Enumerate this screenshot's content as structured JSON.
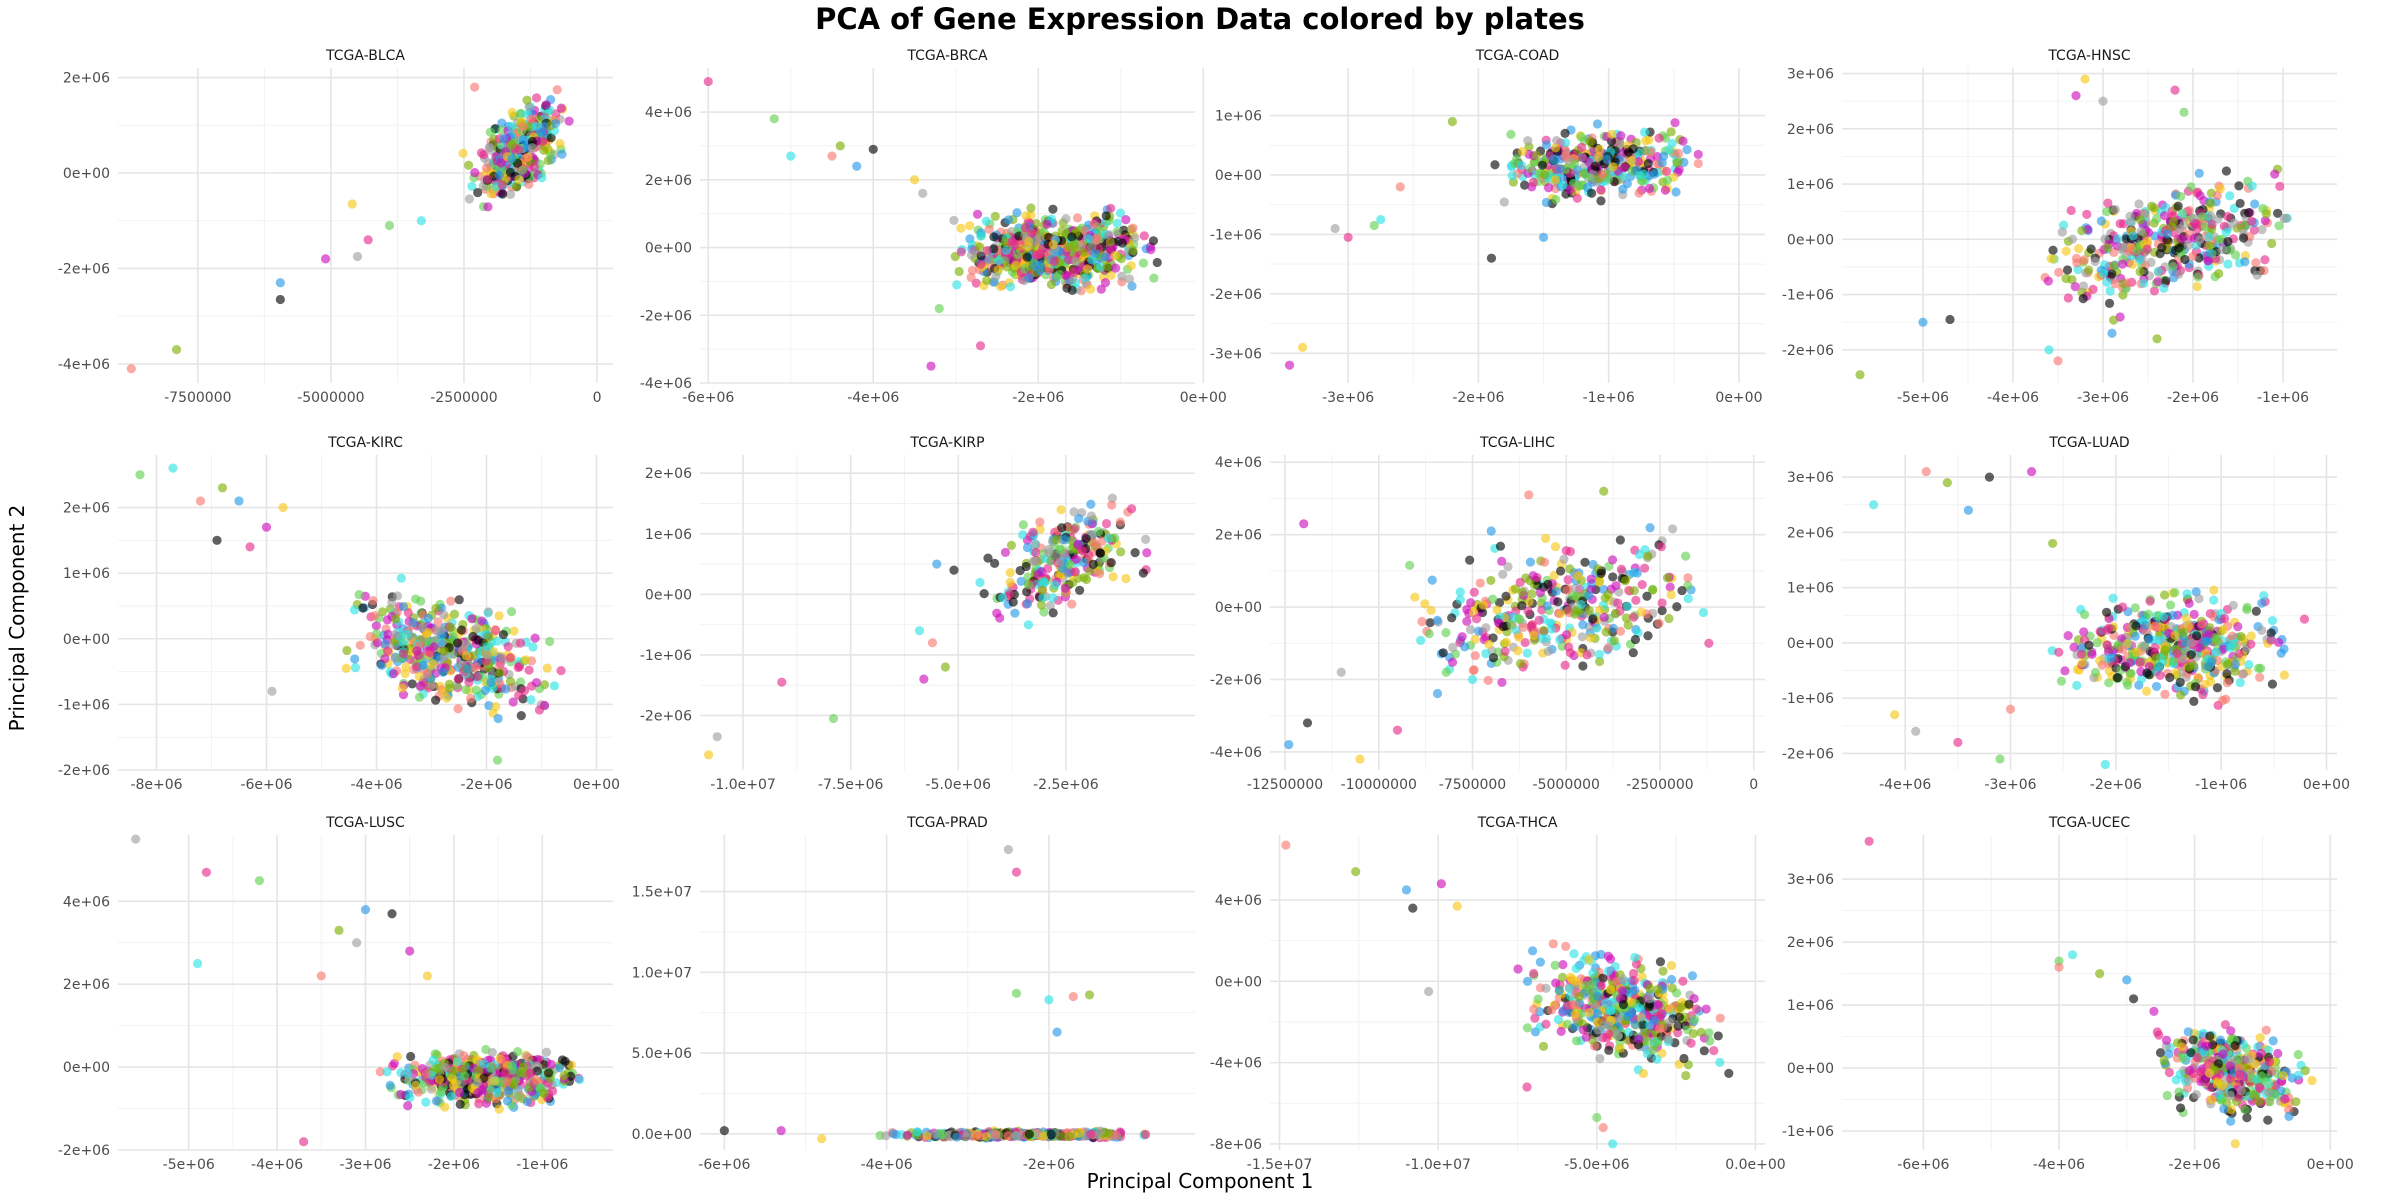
{
  "title": "PCA of Gene Expression Data colored by plates",
  "xlabel": "Principal Component 1",
  "ylabel": "Principal Component 2",
  "palette": [
    "#F8766D",
    "#E7298A",
    "#CD0BBC",
    "#7CAE00",
    "#61D04F",
    "#F5C710",
    "#2297E6",
    "#28E2E5",
    "#9E9E9E",
    "#000000"
  ],
  "chart_data": [
    {
      "type": "scatter",
      "title": "TCGA-BLCA",
      "xlim": [
        -9000000,
        300000
      ],
      "ylim": [
        -4400000,
        2200000
      ],
      "xticks": [
        -7500000,
        -5000000,
        -2500000,
        0
      ],
      "xtick_labels": [
        "-7500000",
        "-5000000",
        "-2500000",
        "0"
      ],
      "yticks": [
        -4000000,
        -2000000,
        0,
        2000000
      ],
      "ytick_labels": [
        "-4e+06",
        "-2e+06",
        "0e+00",
        "2e+06"
      ],
      "cluster": {
        "x": [
          -2600000,
          -300000
        ],
        "y": [
          -1000000,
          1900000
        ],
        "n": 360,
        "slope": 0.9
      },
      "outliers": [
        [
          -8750000,
          -4100000
        ],
        [
          -7900000,
          -3700000
        ],
        [
          -5950000,
          -2300000
        ],
        [
          -5950000,
          -2650000
        ],
        [
          -5100000,
          -1800000
        ],
        [
          -4600000,
          -650000
        ],
        [
          -4500000,
          -1750000
        ],
        [
          -4300000,
          -1400000
        ],
        [
          -3900000,
          -1100000
        ],
        [
          -3300000,
          -1000000
        ],
        [
          -2300000,
          1800000
        ]
      ]
    },
    {
      "type": "scatter",
      "title": "TCGA-BRCA",
      "xlim": [
        -6100000,
        -100000
      ],
      "ylim": [
        -4000000,
        5300000
      ],
      "xticks": [
        -6000000,
        -4000000,
        -2000000,
        0
      ],
      "xtick_labels": [
        "-6e+06",
        "-4e+06",
        "-2e+06",
        "0e+00"
      ],
      "yticks": [
        -4000000,
        -2000000,
        0,
        2000000,
        4000000
      ],
      "ytick_labels": [
        "-4e+06",
        "-2e+06",
        "0e+00",
        "2e+06",
        "4e+06"
      ],
      "cluster": {
        "x": [
          -3300000,
          -300000
        ],
        "y": [
          -2000000,
          1800000
        ],
        "n": 650,
        "slope": 0.05
      },
      "outliers": [
        [
          -6000000,
          4900000
        ],
        [
          -5200000,
          3800000
        ],
        [
          -5000000,
          2700000
        ],
        [
          -4500000,
          2700000
        ],
        [
          -4400000,
          3000000
        ],
        [
          -4200000,
          2400000
        ],
        [
          -4000000,
          2900000
        ],
        [
          -3300000,
          -3500000
        ],
        [
          -3500000,
          2000000
        ],
        [
          -3400000,
          1600000
        ],
        [
          -2700000,
          -2900000
        ],
        [
          -3200000,
          -1800000
        ]
      ]
    },
    {
      "type": "scatter",
      "title": "TCGA-COAD",
      "xlim": [
        -3600000,
        200000
      ],
      "ylim": [
        -3500000,
        1800000
      ],
      "xticks": [
        -3000000,
        -2000000,
        -1000000,
        0
      ],
      "xtick_labels": [
        "-3e+06",
        "-2e+06",
        "-1e+06",
        "0e+00"
      ],
      "yticks": [
        -3000000,
        -2000000,
        -1000000,
        0,
        1000000
      ],
      "ytick_labels": [
        "-3e+06",
        "-2e+06",
        "-1e+06",
        "0e+00",
        "1e+06"
      ],
      "cluster": {
        "x": [
          -2100000,
          -100000
        ],
        "y": [
          -800000,
          1200000
        ],
        "n": 380,
        "slope": 0.15
      },
      "outliers": [
        [
          -3450000,
          -3200000
        ],
        [
          -3350000,
          -2900000
        ],
        [
          -3100000,
          -900000
        ],
        [
          -3000000,
          -1050000
        ],
        [
          -2800000,
          -850000
        ],
        [
          -2750000,
          -750000
        ],
        [
          -2600000,
          -200000
        ],
        [
          -2200000,
          900000
        ],
        [
          -1500000,
          -1050000
        ],
        [
          -1900000,
          -1400000
        ]
      ]
    },
    {
      "type": "scatter",
      "title": "TCGA-HNSC",
      "xlim": [
        -5900000,
        -400000
      ],
      "ylim": [
        -2600000,
        3100000
      ],
      "xticks": [
        -5000000,
        -4000000,
        -3000000,
        -2000000,
        -1000000
      ],
      "xtick_labels": [
        "-5e+06",
        "-4e+06",
        "-3e+06",
        "-2e+06",
        "-1e+06"
      ],
      "yticks": [
        -2000000,
        -1000000,
        0,
        1000000,
        2000000,
        3000000
      ],
      "ytick_labels": [
        "-2e+06",
        "-1e+06",
        "0e+00",
        "1e+06",
        "2e+06",
        "3e+06"
      ],
      "cluster": {
        "x": [
          -4000000,
          -600000
        ],
        "y": [
          -1800000,
          1700000
        ],
        "n": 420,
        "slope": 0.5
      },
      "outliers": [
        [
          -5700000,
          -2450000
        ],
        [
          -5000000,
          -1500000
        ],
        [
          -4700000,
          -1450000
        ],
        [
          -3300000,
          2600000
        ],
        [
          -3200000,
          2900000
        ],
        [
          -3000000,
          2500000
        ],
        [
          -2200000,
          2700000
        ],
        [
          -2100000,
          2300000
        ],
        [
          -3600000,
          -2000000
        ],
        [
          -3500000,
          -2200000
        ],
        [
          -2400000,
          -1800000
        ],
        [
          -2900000,
          -1700000
        ]
      ]
    },
    {
      "type": "scatter",
      "title": "TCGA-KIRC",
      "xlim": [
        -8700000,
        300000
      ],
      "ylim": [
        -2000000,
        2800000
      ],
      "xticks": [
        -8000000,
        -6000000,
        -4000000,
        -2000000,
        0
      ],
      "xtick_labels": [
        "-8e+06",
        "-6e+06",
        "-4e+06",
        "-2e+06",
        "0e+00"
      ],
      "yticks": [
        -2000000,
        -1000000,
        0,
        1000000,
        2000000
      ],
      "ytick_labels": [
        "-2e+06",
        "-1e+06",
        "0e+00",
        "1e+06",
        "2e+06"
      ],
      "cluster": {
        "x": [
          -5000000,
          -300000
        ],
        "y": [
          -1600000,
          1200000
        ],
        "n": 480,
        "slope": -0.55
      },
      "outliers": [
        [
          -8300000,
          2500000
        ],
        [
          -7700000,
          2600000
        ],
        [
          -7200000,
          2100000
        ],
        [
          -6800000,
          2300000
        ],
        [
          -6500000,
          2100000
        ],
        [
          -6900000,
          1500000
        ],
        [
          -6000000,
          1700000
        ],
        [
          -5700000,
          2000000
        ],
        [
          -5900000,
          -800000
        ],
        [
          -6300000,
          1400000
        ],
        [
          -1800000,
          -1850000
        ]
      ]
    },
    {
      "type": "scatter",
      "title": "TCGA-KIRP",
      "xlim": [
        -11000000,
        500000
      ],
      "ylim": [
        -2900000,
        2300000
      ],
      "xticks": [
        -10000000,
        -7500000,
        -5000000,
        -2500000
      ],
      "xtick_labels": [
        "-1.0e+07",
        "-7.5e+06",
        "-5.0e+06",
        "-2.5e+06"
      ],
      "yticks": [
        -2000000,
        -1000000,
        0,
        1000000,
        2000000
      ],
      "ytick_labels": [
        "-2e+06",
        "-1e+06",
        "0e+00",
        "1e+06",
        "2e+06"
      ],
      "cluster": {
        "x": [
          -4800000,
          -200000
        ],
        "y": [
          -800000,
          2000000
        ],
        "n": 260,
        "slope": 0.65
      },
      "outliers": [
        [
          -10800000,
          -2650000
        ],
        [
          -10600000,
          -2350000
        ],
        [
          -9100000,
          -1450000
        ],
        [
          -7900000,
          -2050000
        ],
        [
          -5900000,
          -600000
        ],
        [
          -5600000,
          -800000
        ],
        [
          -5300000,
          -1200000
        ],
        [
          -5500000,
          500000
        ],
        [
          -5100000,
          400000
        ],
        [
          -5800000,
          -1400000
        ]
      ]
    },
    {
      "type": "scatter",
      "title": "TCGA-LIHC",
      "xlim": [
        -12900000,
        300000
      ],
      "ylim": [
        -4500000,
        4200000
      ],
      "xticks": [
        -12500000,
        -10000000,
        -7500000,
        -5000000,
        -2500000,
        0
      ],
      "xtick_labels": [
        "-12500000",
        "-10000000",
        "-7500000",
        "-5000000",
        "-2500000",
        "0"
      ],
      "yticks": [
        -4000000,
        -2000000,
        0,
        2000000,
        4000000
      ],
      "ytick_labels": [
        "-4e+06",
        "-2e+06",
        "0e+00",
        "2e+06",
        "4e+06"
      ],
      "cluster": {
        "x": [
          -10000000,
          -300000
        ],
        "y": [
          -3000000,
          3000000
        ],
        "n": 380,
        "slope": 0.45
      },
      "outliers": [
        [
          -12400000,
          -3800000
        ],
        [
          -11900000,
          -3200000
        ],
        [
          -12000000,
          2300000
        ],
        [
          -10500000,
          -4200000
        ],
        [
          -11000000,
          -1800000
        ],
        [
          -9500000,
          -3400000
        ],
        [
          -8200000,
          -1800000
        ],
        [
          -7500000,
          -2000000
        ],
        [
          -6000000,
          3100000
        ],
        [
          -4000000,
          3200000
        ],
        [
          -7000000,
          2100000
        ]
      ]
    },
    {
      "type": "scatter",
      "title": "TCGA-LUAD",
      "xlim": [
        -4600000,
        100000
      ],
      "ylim": [
        -2300000,
        3400000
      ],
      "xticks": [
        -4000000,
        -3000000,
        -2000000,
        -1000000,
        0
      ],
      "xtick_labels": [
        "-4e+06",
        "-3e+06",
        "-2e+06",
        "-1e+06",
        "0e+00"
      ],
      "yticks": [
        -2000000,
        -1000000,
        0,
        1000000,
        2000000,
        3000000
      ],
      "ytick_labels": [
        "-2e+06",
        "-1e+06",
        "0e+00",
        "1e+06",
        "2e+06",
        "3e+06"
      ],
      "cluster": {
        "x": [
          -2800000,
          -100000
        ],
        "y": [
          -1600000,
          1500000
        ],
        "n": 480,
        "slope": 0.0
      },
      "outliers": [
        [
          -4300000,
          2500000
        ],
        [
          -3800000,
          3100000
        ],
        [
          -3600000,
          2900000
        ],
        [
          -3400000,
          2400000
        ],
        [
          -3200000,
          3000000
        ],
        [
          -2800000,
          3100000
        ],
        [
          -4100000,
          -1300000
        ],
        [
          -3900000,
          -1600000
        ],
        [
          -3500000,
          -1800000
        ],
        [
          -3100000,
          -2100000
        ],
        [
          -2100000,
          -2200000
        ],
        [
          -3000000,
          -1200000
        ],
        [
          -2600000,
          1800000
        ]
      ]
    },
    {
      "type": "scatter",
      "title": "TCGA-LUSC",
      "xlim": [
        -5800000,
        -200000
      ],
      "ylim": [
        -2000000,
        5600000
      ],
      "xticks": [
        -5000000,
        -4000000,
        -3000000,
        -2000000,
        -1000000
      ],
      "xtick_labels": [
        "-5e+06",
        "-4e+06",
        "-3e+06",
        "-2e+06",
        "-1e+06"
      ],
      "yticks": [
        -2000000,
        0,
        2000000,
        4000000
      ],
      "ytick_labels": [
        "-2e+06",
        "0e+00",
        "2e+06",
        "4e+06"
      ],
      "cluster": {
        "x": [
          -3000000,
          -300000
        ],
        "y": [
          -1400000,
          900000
        ],
        "n": 520,
        "slope": 0.05
      },
      "outliers": [
        [
          -5600000,
          5500000
        ],
        [
          -4800000,
          4700000
        ],
        [
          -4200000,
          4500000
        ],
        [
          -4900000,
          2500000
        ],
        [
          -3500000,
          2200000
        ],
        [
          -3300000,
          3300000
        ],
        [
          -3000000,
          3800000
        ],
        [
          -2700000,
          3700000
        ],
        [
          -2500000,
          2800000
        ],
        [
          -2300000,
          2200000
        ],
        [
          -3100000,
          3000000
        ],
        [
          -3700000,
          -1800000
        ]
      ]
    },
    {
      "type": "scatter",
      "title": "TCGA-PRAD",
      "xlim": [
        -6300000,
        -200000
      ],
      "ylim": [
        -1000000,
        18500000
      ],
      "xticks": [
        -6000000,
        -4000000,
        -2000000
      ],
      "xtick_labels": [
        "-6e+06",
        "-4e+06",
        "-2e+06"
      ],
      "yticks": [
        0,
        5000000,
        10000000,
        15000000
      ],
      "ytick_labels": [
        "0.0e+00",
        "5.0e+06",
        "1.0e+07",
        "1.5e+07"
      ],
      "cluster": {
        "x": [
          -4300000,
          -400000
        ],
        "y": [
          -400000,
          300000
        ],
        "n": 420,
        "slope": 0.0
      },
      "outliers": [
        [
          -6000000,
          200000
        ],
        [
          -5300000,
          200000
        ],
        [
          -4800000,
          -300000
        ],
        [
          -2500000,
          17600000
        ],
        [
          -2400000,
          16200000
        ],
        [
          -2400000,
          8700000
        ],
        [
          -2000000,
          8300000
        ],
        [
          -1700000,
          8500000
        ],
        [
          -1500000,
          8600000
        ],
        [
          -1900000,
          6300000
        ]
      ]
    },
    {
      "type": "scatter",
      "title": "TCGA-THCA",
      "xlim": [
        -15300000,
        300000
      ],
      "ylim": [
        -8300000,
        7200000
      ],
      "xticks": [
        -15000000,
        -10000000,
        -5000000,
        0
      ],
      "xtick_labels": [
        "-1.5e+07",
        "-1.0e+07",
        "-5.0e+06",
        "0.0e+00"
      ],
      "yticks": [
        -8000000,
        -4000000,
        0,
        4000000
      ],
      "ytick_labels": [
        "-8e+06",
        "-4e+06",
        "0e+00",
        "4e+06"
      ],
      "cluster": {
        "x": [
          -8000000,
          -500000
        ],
        "y": [
          -5500000,
          2800000
        ],
        "n": 520,
        "slope": -0.5
      },
      "outliers": [
        [
          -14800000,
          6700000
        ],
        [
          -12600000,
          5400000
        ],
        [
          -11000000,
          4500000
        ],
        [
          -10800000,
          3600000
        ],
        [
          -9900000,
          4800000
        ],
        [
          -9400000,
          3700000
        ],
        [
          -10300000,
          -500000
        ],
        [
          -7200000,
          -5200000
        ],
        [
          -5000000,
          -6700000
        ],
        [
          -4500000,
          -8000000
        ],
        [
          -4800000,
          -7200000
        ]
      ]
    },
    {
      "type": "scatter",
      "title": "TCGA-UCEC",
      "xlim": [
        -7200000,
        100000
      ],
      "ylim": [
        -1300000,
        3700000
      ],
      "xticks": [
        -6000000,
        -4000000,
        -2000000,
        0
      ],
      "xtick_labels": [
        "-6e+06",
        "-4e+06",
        "-2e+06",
        "0e+00"
      ],
      "yticks": [
        -1000000,
        0,
        1000000,
        2000000,
        3000000
      ],
      "ytick_labels": [
        "-1e+06",
        "0e+00",
        "1e+06",
        "2e+06",
        "3e+06"
      ],
      "cluster": {
        "x": [
          -2800000,
          -100000
        ],
        "y": [
          -1200000,
          1100000
        ],
        "n": 420,
        "slope": -0.45
      },
      "outliers": [
        [
          -6800000,
          3600000
        ],
        [
          -4000000,
          1700000
        ],
        [
          -3800000,
          1800000
        ],
        [
          -4000000,
          1600000
        ],
        [
          -3400000,
          1500000
        ],
        [
          -3000000,
          1400000
        ],
        [
          -2900000,
          1100000
        ],
        [
          -2600000,
          900000
        ],
        [
          -1400000,
          -1200000
        ]
      ]
    }
  ]
}
